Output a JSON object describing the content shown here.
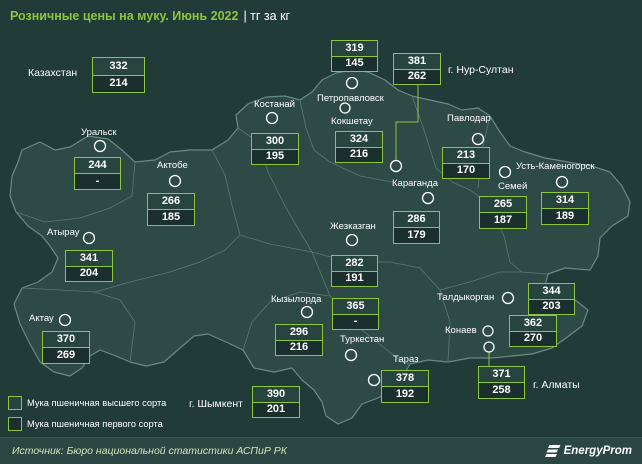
{
  "title": {
    "main": "Розничные цены на муку. Июнь 2022",
    "unit": "| тг за кг"
  },
  "colors": {
    "background": "#213b39",
    "map_fill": "#2d4a47",
    "map_border": "#5a7874",
    "accent": "#8cc63f",
    "cell_premium": "#27443f",
    "cell_first": "#1b302e",
    "label": "#ffffff",
    "source_text": "#d2e6b4",
    "footer": "#2a4744"
  },
  "icons": {
    "city_marker": "circle-outline-icon",
    "brand_logo": "energyprom-logo-icon"
  },
  "regions": [
    {
      "name": "Казахстан",
      "premium": 332,
      "first": 214
    },
    {
      "name": "Петропавловск",
      "premium": 319,
      "first": 145
    },
    {
      "name": "г. Нур-Султан",
      "premium": 381,
      "first": 262
    },
    {
      "name": "Костанай",
      "premium": 300,
      "first": 195
    },
    {
      "name": "Кокшетау",
      "premium": 324,
      "first": 216
    },
    {
      "name": "Павлодар",
      "premium": 213,
      "first": 170
    },
    {
      "name": "Уральск",
      "premium": 244,
      "first": "-"
    },
    {
      "name": "Актобе",
      "premium": 266,
      "first": 185
    },
    {
      "name": "Караганда",
      "premium": 286,
      "first": 179
    },
    {
      "name": "Семей",
      "premium": 265,
      "first": 187
    },
    {
      "name": "Усть-Каменогорск",
      "premium": 314,
      "first": 189
    },
    {
      "name": "Атырау",
      "premium": 341,
      "first": 204
    },
    {
      "name": "Жезказган",
      "premium": 282,
      "first": 191
    },
    {
      "name": "Талдыкорган",
      "premium": 344,
      "first": 203
    },
    {
      "name": "Актау",
      "premium": 370,
      "first": 269
    },
    {
      "name": "Кызылорда",
      "premium": 296,
      "first": 216
    },
    {
      "name": "Туркестан",
      "premium": 365,
      "first": "-"
    },
    {
      "name": "Конаев",
      "premium": 362,
      "first": 270
    },
    {
      "name": "Тараз",
      "premium": 378,
      "first": 192
    },
    {
      "name": "г. Алматы",
      "premium": 371,
      "first": 258
    },
    {
      "name": "г. Шымкент",
      "premium": 390,
      "first": 201
    }
  ],
  "legend": [
    {
      "label": "Мука пшеничная высшего сорта"
    },
    {
      "label": "Мука пшеничная первого сорта"
    }
  ],
  "footer": {
    "source": "Источник: Бюро национальной статистики АСПиР РК",
    "brand": "EnergyProm"
  }
}
